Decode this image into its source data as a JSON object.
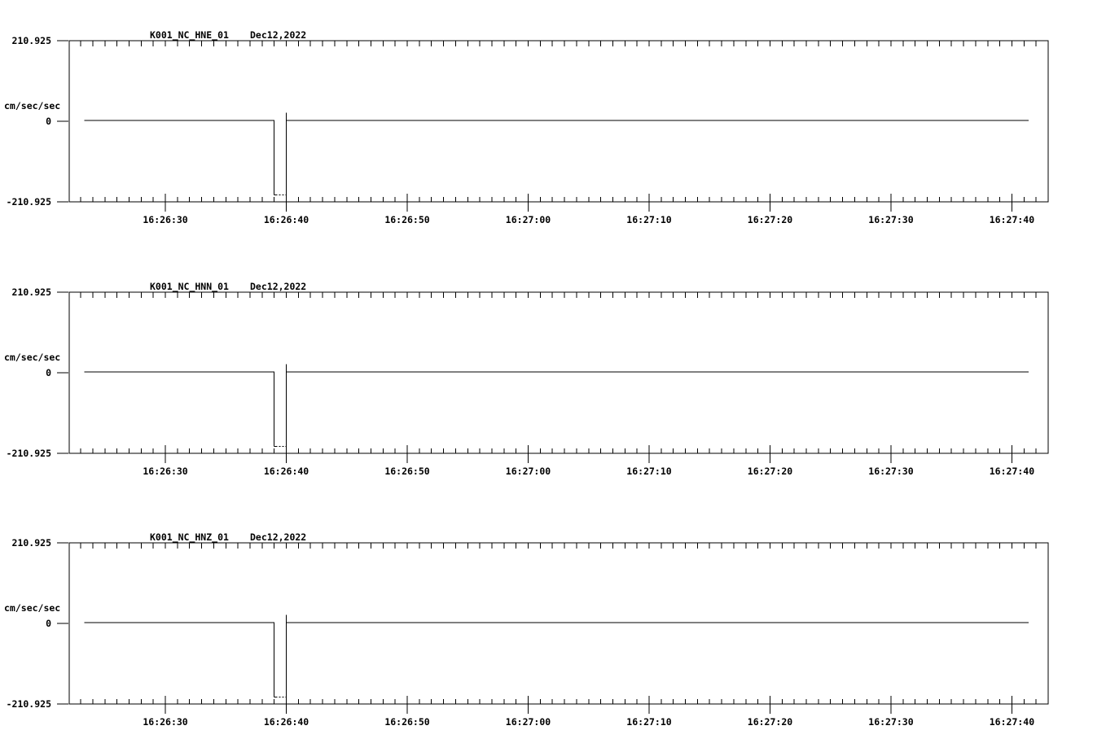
{
  "window": {
    "background": "#ffffff",
    "ink": "#000000"
  },
  "chart_data": [
    {
      "type": "line",
      "title": "K001_NC_HNE_01",
      "date_label": "Dec12,2022",
      "y_unit_label": "cm/sec/sec",
      "ylim": [
        -210.925,
        210.925
      ],
      "y_ticks": [
        {
          "value": 210.925,
          "label": "210.925"
        },
        {
          "value": 0,
          "label": "0"
        },
        {
          "value": -210.925,
          "label": "-210.925"
        }
      ],
      "x_axis_note": "seconds after 16:26:00",
      "x_seconds_domain": [
        22.05,
        103.0
      ],
      "x_minor_tick_every_s": 1,
      "x_major_ticks": [
        {
          "s": 30,
          "label": "16:26:30"
        },
        {
          "s": 40,
          "label": "16:26:40"
        },
        {
          "s": 50,
          "label": "16:26:50"
        },
        {
          "s": 60,
          "label": "16:27:00"
        },
        {
          "s": 70,
          "label": "16:27:10"
        },
        {
          "s": 80,
          "label": "16:27:20"
        },
        {
          "s": 90,
          "label": "16:27:30"
        },
        {
          "s": 100,
          "label": "16:27:40"
        }
      ],
      "grid": false,
      "legend": false,
      "series": [
        {
          "name": "acceleration-trace",
          "baseline_value": 2,
          "start_s": 23.3,
          "end_s": 101.4,
          "pulse": {
            "start_s": 39.0,
            "end_s": 40.0,
            "low_value": -193,
            "overshoot_value": 22,
            "bottom_style": "dashed"
          }
        }
      ]
    },
    {
      "type": "line",
      "title": "K001_NC_HNN_01",
      "date_label": "Dec12,2022",
      "y_unit_label": "cm/sec/sec",
      "ylim": [
        -210.925,
        210.925
      ],
      "y_ticks": [
        {
          "value": 210.925,
          "label": "210.925"
        },
        {
          "value": 0,
          "label": "0"
        },
        {
          "value": -210.925,
          "label": "-210.925"
        }
      ],
      "x_axis_note": "seconds after 16:26:00",
      "x_seconds_domain": [
        22.05,
        103.0
      ],
      "x_minor_tick_every_s": 1,
      "x_major_ticks": [
        {
          "s": 30,
          "label": "16:26:30"
        },
        {
          "s": 40,
          "label": "16:26:40"
        },
        {
          "s": 50,
          "label": "16:26:50"
        },
        {
          "s": 60,
          "label": "16:27:00"
        },
        {
          "s": 70,
          "label": "16:27:10"
        },
        {
          "s": 80,
          "label": "16:27:20"
        },
        {
          "s": 90,
          "label": "16:27:30"
        },
        {
          "s": 100,
          "label": "16:27:40"
        }
      ],
      "grid": false,
      "legend": false,
      "series": [
        {
          "name": "acceleration-trace",
          "baseline_value": 2,
          "start_s": 23.3,
          "end_s": 101.4,
          "pulse": {
            "start_s": 39.0,
            "end_s": 40.0,
            "low_value": -193,
            "overshoot_value": 22,
            "bottom_style": "dashed"
          }
        }
      ]
    },
    {
      "type": "line",
      "title": "K001_NC_HNZ_01",
      "date_label": "Dec12,2022",
      "y_unit_label": "cm/sec/sec",
      "ylim": [
        -210.925,
        210.925
      ],
      "y_ticks": [
        {
          "value": 210.925,
          "label": "210.925"
        },
        {
          "value": 0,
          "label": "0"
        },
        {
          "value": -210.925,
          "label": "-210.925"
        }
      ],
      "x_axis_note": "seconds after 16:26:00",
      "x_seconds_domain": [
        22.05,
        103.0
      ],
      "x_minor_tick_every_s": 1,
      "x_major_ticks": [
        {
          "s": 30,
          "label": "16:26:30"
        },
        {
          "s": 40,
          "label": "16:26:40"
        },
        {
          "s": 50,
          "label": "16:26:50"
        },
        {
          "s": 60,
          "label": "16:27:00"
        },
        {
          "s": 70,
          "label": "16:27:10"
        },
        {
          "s": 80,
          "label": "16:27:20"
        },
        {
          "s": 90,
          "label": "16:27:30"
        },
        {
          "s": 100,
          "label": "16:27:40"
        }
      ],
      "grid": false,
      "legend": false,
      "series": [
        {
          "name": "acceleration-trace",
          "baseline_value": 2,
          "start_s": 23.3,
          "end_s": 101.4,
          "pulse": {
            "start_s": 39.0,
            "end_s": 40.0,
            "low_value": -193,
            "overshoot_value": 22,
            "bottom_style": "dashed"
          }
        }
      ]
    }
  ]
}
